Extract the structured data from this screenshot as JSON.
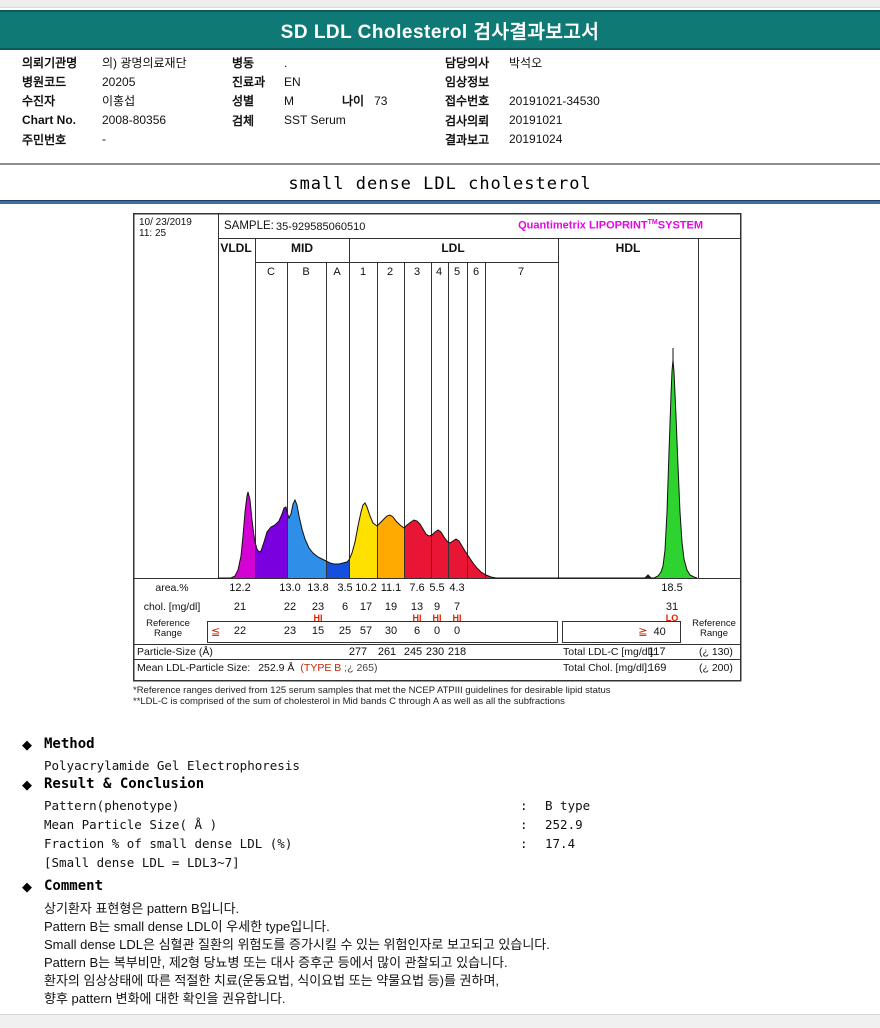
{
  "banner": {
    "title": "SD LDL Cholesterol 검사결과보고서",
    "bg_color": "#0f7a75"
  },
  "patient": {
    "columns": [
      {
        "rows": [
          {
            "label": "의뢰기관명",
            "value": "의) 광명의료재단"
          },
          {
            "label": "병원코드",
            "value": "20205"
          },
          {
            "label": "수진자",
            "value": "이홍섭"
          },
          {
            "label": "Chart No.",
            "value": "2008-80356"
          },
          {
            "label": "주민번호",
            "value": "-"
          }
        ]
      },
      {
        "rows": [
          {
            "label": "병동",
            "value": "."
          },
          {
            "label": "진료과",
            "value": "EN"
          },
          {
            "label": "성별",
            "value": "M",
            "label2": "나이",
            "value2": "73"
          },
          {
            "label": "검체",
            "value": "SST Serum"
          }
        ]
      },
      {
        "rows": [
          {
            "label": "담당의사",
            "value": "박석오"
          },
          {
            "label": "임상정보",
            "value": ""
          },
          {
            "label": "접수번호",
            "value": "20191021-34530"
          },
          {
            "label": "검사의뢰",
            "value": "20191021"
          },
          {
            "label": "결과보고",
            "value": "20191024"
          }
        ]
      }
    ]
  },
  "section_title": "small dense LDL cholesterol",
  "panel": {
    "datetime_line1": "10/ 23/2019",
    "datetime_line2": "11: 25",
    "sample_label": "SAMPLE:",
    "sample_value": "35-929585060510",
    "brand_name": "Quantimetrix",
    "brand_product": " LIPOPRINT",
    "brand_sup": "TM",
    "brand_system": "SYSTEM",
    "footnote1": "*Reference ranges derived from 125 serum samples that met the NCEP ATPIII guidelines for desirable lipid status",
    "footnote2": "**LDL-C is comprised of the sum of cholesterol in Mid bands C through A as well as all the subfractions"
  },
  "chart_data": {
    "type": "area",
    "title": "Quantimetrix LIPOPRINT SYSTEM gel densitometry scan",
    "sections": [
      "VLDL",
      "MID",
      "LDL",
      "HDL"
    ],
    "mid_band_labels": [
      "C",
      "B",
      "A"
    ],
    "ldl_band_labels": [
      "1",
      "2",
      "3",
      "4",
      "5",
      "6",
      "7"
    ],
    "row_labels": {
      "area": "area.%",
      "chol": "chol. [mg/dl]",
      "ref_line1": "Reference",
      "ref_line2": "Range",
      "particle": "Particle-Size (Å)"
    },
    "fractions": [
      {
        "name": "VLDL",
        "area_pct": "12.2",
        "chol": "21",
        "ref": "22"
      },
      {
        "name": "MID C",
        "area_pct": "13.0",
        "chol": "22",
        "ref": "23"
      },
      {
        "name": "MID B",
        "area_pct": "13.8",
        "chol": "23",
        "chol_flag": "HI",
        "ref": "15"
      },
      {
        "name": "MID A",
        "area_pct": "3.5",
        "chol": "6",
        "ref": "25"
      },
      {
        "name": "LDL 1",
        "area_pct": "10.2",
        "chol": "17",
        "ref": "57",
        "particle_size": "277"
      },
      {
        "name": "LDL 2",
        "area_pct": "11.1",
        "chol": "19",
        "ref": "30",
        "particle_size": "261"
      },
      {
        "name": "LDL 3",
        "area_pct": "7.6",
        "chol": "13",
        "chol_flag": "HI",
        "ref": "6",
        "particle_size": "245"
      },
      {
        "name": "LDL 4",
        "area_pct": "5.5",
        "chol": "9",
        "chol_flag": "HI",
        "ref": "0",
        "particle_size": "230"
      },
      {
        "name": "LDL 5",
        "area_pct": "4.3",
        "chol": "7",
        "chol_flag": "HI",
        "ref": "0",
        "particle_size": "218"
      }
    ],
    "hdl": {
      "name": "HDL",
      "area_pct": "18.5",
      "chol": "31",
      "chol_flag": "LO",
      "ref": "40"
    },
    "ref_prefix_low": "≦",
    "ref_prefix_high": "≧",
    "totals": {
      "ldl_label": "Total LDL-C [mg/dl]:",
      "ldl_value": "117",
      "ldl_ref": "(¿ 130)",
      "chol_label": "Total Chol. [mg/dl]:",
      "chol_value": "169",
      "chol_ref": "(¿ 200)"
    },
    "mean_particle": {
      "label": "Mean LDL-Particle Size:",
      "value": "252.9 Å",
      "type_note_red": "(TYPE B ;",
      "type_note_rest": "¿ 265)"
    },
    "curve": {
      "baseline_note": "heights are px above gel baseline",
      "segments": [
        {
          "band": "VLDL",
          "color": "#d303d3",
          "points": [
            [
              218,
              0
            ],
            [
              231,
              0
            ],
            [
              235,
              2
            ],
            [
              238,
              8
            ],
            [
              241,
              22
            ],
            [
              243,
              42
            ],
            [
              245,
              66
            ],
            [
              247,
              82
            ],
            [
              248,
              86
            ],
            [
              250,
              78
            ],
            [
              252,
              58
            ],
            [
              254,
              42
            ],
            [
              255,
              36
            ]
          ]
        },
        {
          "band": "MID C",
          "color": "#7a00e0",
          "points": [
            [
              255,
              36
            ],
            [
              257,
              29
            ],
            [
              259,
              26
            ],
            [
              261,
              27
            ],
            [
              264,
              36
            ],
            [
              267,
              46
            ],
            [
              271,
              51
            ],
            [
              275,
              53
            ],
            [
              279,
              57
            ],
            [
              282,
              64
            ],
            [
              284,
              70
            ],
            [
              286,
              71
            ],
            [
              287,
              66
            ]
          ]
        },
        {
          "band": "MID B",
          "color": "#2f8fe8",
          "points": [
            [
              287,
              66
            ],
            [
              289,
              60
            ],
            [
              291,
              64
            ],
            [
              293,
              74
            ],
            [
              295,
              78
            ],
            [
              297,
              73
            ],
            [
              299,
              62
            ],
            [
              302,
              49
            ],
            [
              305,
              39
            ],
            [
              309,
              30
            ],
            [
              313,
              25
            ],
            [
              318,
              21
            ],
            [
              322,
              19
            ],
            [
              326,
              17
            ]
          ]
        },
        {
          "band": "MID A",
          "color": "#1450e0",
          "points": [
            [
              326,
              17
            ],
            [
              330,
              15
            ],
            [
              334,
              14
            ],
            [
              339,
              14
            ],
            [
              343,
              15
            ],
            [
              347,
              16
            ],
            [
              349,
              18
            ]
          ]
        },
        {
          "band": "LDL 1",
          "color": "#ffe100",
          "points": [
            [
              349,
              18
            ],
            [
              352,
              25
            ],
            [
              355,
              36
            ],
            [
              358,
              52
            ],
            [
              361,
              66
            ],
            [
              363,
              73
            ],
            [
              365,
              75
            ],
            [
              367,
              71
            ],
            [
              370,
              62
            ],
            [
              373,
              55
            ],
            [
              377,
              52
            ]
          ]
        },
        {
          "band": "LDL 2",
          "color": "#ffaa00",
          "points": [
            [
              377,
              52
            ],
            [
              380,
              55
            ],
            [
              384,
              59
            ],
            [
              387,
              62
            ],
            [
              390,
              63
            ],
            [
              393,
              61
            ],
            [
              396,
              57
            ],
            [
              400,
              53
            ],
            [
              404,
              50
            ]
          ]
        },
        {
          "band": "LDL 3-7",
          "color": "#e81535",
          "points": [
            [
              404,
              50
            ],
            [
              407,
              53
            ],
            [
              411,
              56
            ],
            [
              414,
              58
            ],
            [
              417,
              57
            ],
            [
              420,
              54
            ],
            [
              423,
              49
            ],
            [
              426,
              44
            ],
            [
              429,
              42
            ],
            [
              432,
              43
            ],
            [
              435,
              46
            ],
            [
              438,
              48
            ],
            [
              441,
              46
            ],
            [
              444,
              41
            ],
            [
              447,
              37
            ],
            [
              450,
              35
            ],
            [
              453,
              37
            ],
            [
              456,
              39
            ],
            [
              459,
              37
            ],
            [
              462,
              32
            ],
            [
              465,
              27
            ],
            [
              469,
              21
            ],
            [
              473,
              15
            ],
            [
              477,
              10
            ],
            [
              481,
              6
            ],
            [
              486,
              3
            ],
            [
              491,
              1
            ],
            [
              496,
              0
            ]
          ]
        },
        {
          "band": "baseline-mark",
          "color": "#222222",
          "points": [
            [
              645,
              0
            ],
            [
              648,
              3
            ],
            [
              651,
              0
            ]
          ]
        },
        {
          "band": "HDL",
          "color": "#2fd32f",
          "points": [
            [
              654,
              0
            ],
            [
              658,
              2
            ],
            [
              661,
              6
            ],
            [
              663,
              12
            ],
            [
              665,
              28
            ],
            [
              667,
              66
            ],
            [
              669,
              126
            ],
            [
              671,
              183
            ],
            [
              672,
              207
            ],
            [
              673,
              218
            ],
            [
              674,
              206
            ],
            [
              676,
              162
            ],
            [
              678,
              112
            ],
            [
              680,
              66
            ],
            [
              682,
              36
            ],
            [
              684,
              19
            ],
            [
              687,
              8
            ],
            [
              690,
              3
            ],
            [
              694,
              1
            ],
            [
              697,
              0
            ]
          ]
        }
      ]
    }
  },
  "method": {
    "bullet": "◆",
    "title": "Method",
    "body": "Polyacrylamide Gel Electrophoresis"
  },
  "result": {
    "bullet": "◆",
    "title": "Result & Conclusion",
    "colon": ":",
    "rows": [
      {
        "label": "Pattern(phenotype)",
        "value": "B type"
      },
      {
        "label": "Mean Particle Size( Å )",
        "value": "252.9"
      },
      {
        "label": "Fraction % of small dense LDL (%)",
        "value": "17.4"
      }
    ],
    "note": "[Small dense LDL = LDL3~7]"
  },
  "comment": {
    "bullet": "◆",
    "title": "Comment",
    "lines": [
      "상기환자 표현형은 pattern B입니다.",
      "Pattern B는 small dense LDL이 우세한 type입니다.",
      "Small dense LDL은 심혈관 질환의 위험도를 증가시킬 수 있는 위험인자로 보고되고 있습니다.",
      "Pattern B는 복부비만, 제2형 당뇨병 또는 대사 증후군 등에서 많이 관찰되고 있습니다.",
      "환자의 임상상태에 따른 적절한 치료(운동요법, 식이요법 또는 약물요법 등)를 권하며,",
      "향후 pattern 변화에 대한 확인을 권유합니다."
    ]
  }
}
